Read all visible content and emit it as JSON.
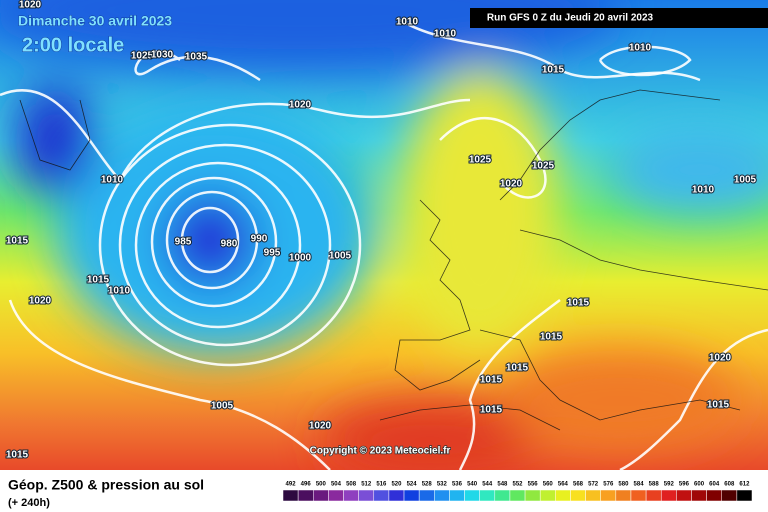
{
  "header": {
    "date": "Dimanche 30 avril 2023",
    "time": "2:00 locale",
    "run": "Run GFS 0 Z du Jeudi 20 avril 2023"
  },
  "isobar_labels": [
    "1020",
    "1010",
    "1010",
    "1010",
    "1025",
    "1030",
    "1035",
    "1015",
    "1020",
    "1025",
    "1025",
    "1010",
    "1020",
    "1010",
    "1005",
    "1015",
    "985",
    "980",
    "990",
    "995",
    "1000",
    "1005",
    "1015",
    "1010",
    "1020",
    "1015",
    "1015",
    "1015",
    "1015",
    "1020",
    "1015",
    "1005",
    "1015",
    "1020",
    "1015"
  ],
  "copyright": "Copyright © 2023 Meteociel.fr",
  "footer": {
    "title": "Géop. Z500 & pression au sol",
    "subtitle": "(+ 240h)"
  },
  "legend": {
    "values": [
      492,
      496,
      500,
      504,
      508,
      512,
      516,
      520,
      524,
      528,
      532,
      536,
      540,
      544,
      548,
      552,
      556,
      560,
      564,
      568,
      572,
      576,
      580,
      584,
      588,
      592,
      596,
      600,
      604,
      608,
      612
    ],
    "colors": [
      "#2d0a40",
      "#4b0f5f",
      "#6a1a7f",
      "#8a2a9e",
      "#8f3fbf",
      "#7a4fd6",
      "#5050e0",
      "#3030d8",
      "#1040e0",
      "#1a6ae8",
      "#2090f0",
      "#20b4f0",
      "#20d8e8",
      "#30e8c0",
      "#40e890",
      "#60e860",
      "#90e840",
      "#c0f030",
      "#e8f020",
      "#f8e020",
      "#f8c020",
      "#f8a020",
      "#f08020",
      "#f06020",
      "#e84020",
      "#e02020",
      "#c01010",
      "#a00808",
      "#800000",
      "#500000",
      "#000000"
    ]
  }
}
